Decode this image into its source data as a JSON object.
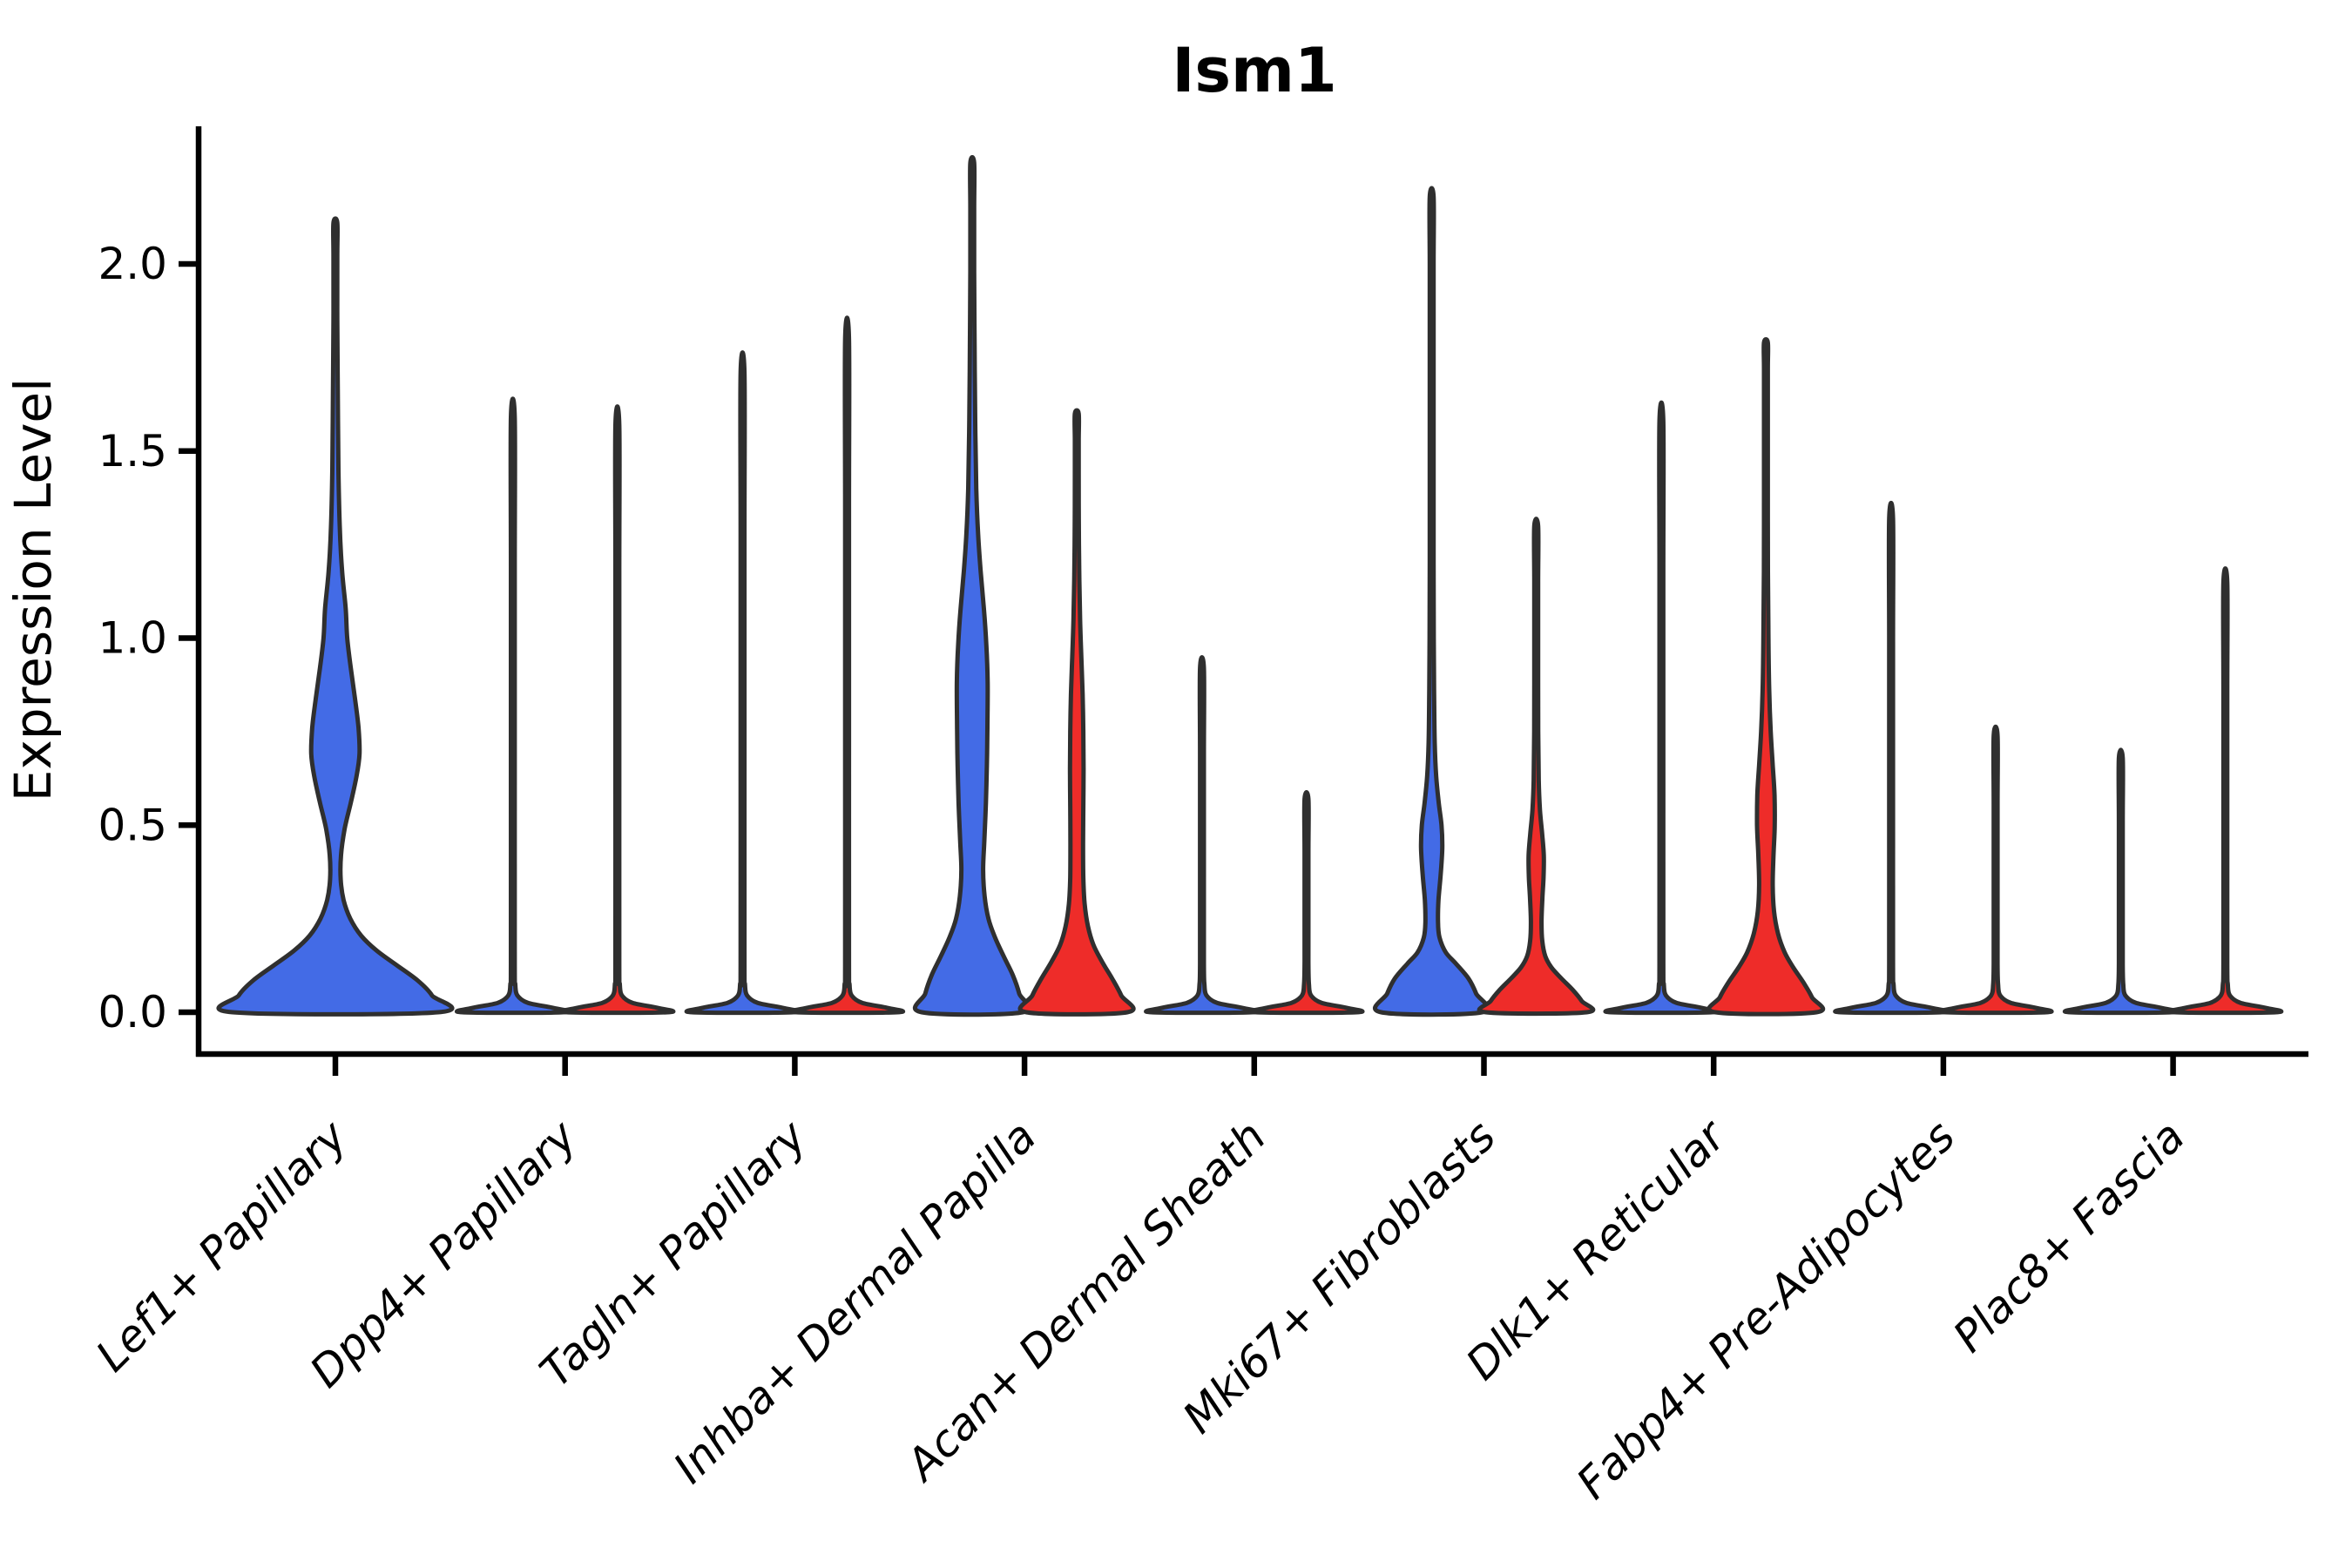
{
  "chart_data": {
    "type": "violin",
    "title": "Ism1",
    "ylabel": "Expression Level",
    "xlabel": "",
    "legend_position": "none",
    "grid": false,
    "ytick_labels": [
      "0.0",
      "0.5",
      "1.0",
      "1.5",
      "2.0"
    ],
    "ytick_values": [
      0.0,
      0.5,
      1.0,
      1.5,
      2.0
    ],
    "ylim": [
      -0.11,
      2.37
    ],
    "xtick_rotation_deg": 45,
    "series_colors": {
      "blue": "#436BE6",
      "red": "#EE2C29",
      "outline": "#2f2f2f"
    },
    "categories": [
      "Lef1+ Papillary",
      "Dpp4+ Papillary",
      "Tagln+ Papillary",
      "Inhba+ Dermal Papilla",
      "Acan+ Dermal Sheath",
      "Mki67+ Fibroblasts",
      "Dlk1+ Reticular",
      "Fabp4+ Pre-Adipocytes",
      "Plac8+ Fascia"
    ],
    "groups": [
      {
        "label": "Lef1+ Papillary",
        "violins": [
          {
            "split": "blue",
            "align": "center",
            "width": "double",
            "max_expression": 2.11,
            "shape": "lef1_blue"
          }
        ]
      },
      {
        "label": "Dpp4+ Papillary",
        "violins": [
          {
            "split": "blue",
            "align": "left",
            "width": "single",
            "max_expression": 1.59,
            "shape": "line"
          },
          {
            "split": "red",
            "align": "right",
            "width": "single",
            "max_expression": 1.57,
            "shape": "line"
          }
        ]
      },
      {
        "label": "Tagln+ Papillary",
        "violins": [
          {
            "split": "blue",
            "align": "left",
            "width": "single",
            "max_expression": 1.71,
            "shape": "line"
          },
          {
            "split": "red",
            "align": "right",
            "width": "single",
            "max_expression": 1.8,
            "shape": "line"
          }
        ]
      },
      {
        "label": "Inhba+ Dermal Papilla",
        "violins": [
          {
            "split": "blue",
            "align": "left",
            "width": "single",
            "max_expression": 2.27,
            "shape": "inhba_blue"
          },
          {
            "split": "red",
            "align": "right",
            "width": "single",
            "max_expression": 1.6,
            "shape": "inhba_red"
          }
        ]
      },
      {
        "label": "Acan+ Dermal Sheath",
        "violins": [
          {
            "split": "blue",
            "align": "left",
            "width": "single",
            "max_expression": 0.92,
            "shape": "line"
          },
          {
            "split": "red",
            "align": "right",
            "width": "single",
            "max_expression": 0.57,
            "shape": "line"
          }
        ]
      },
      {
        "label": "Mki67+ Fibroblasts",
        "violins": [
          {
            "split": "blue",
            "align": "left",
            "width": "single",
            "max_expression": 2.18,
            "shape": "mki67_blue"
          },
          {
            "split": "red",
            "align": "right",
            "width": "single",
            "max_expression": 1.3,
            "shape": "mki67_red"
          }
        ]
      },
      {
        "label": "Dlk1+ Reticular",
        "violins": [
          {
            "split": "blue",
            "align": "left",
            "width": "single",
            "max_expression": 1.58,
            "shape": "line"
          },
          {
            "split": "red",
            "align": "right",
            "width": "single",
            "max_expression": 1.79,
            "shape": "dlk1_red"
          }
        ]
      },
      {
        "label": "Fabp4+ Pre-Adipocytes",
        "violins": [
          {
            "split": "blue",
            "align": "left",
            "width": "single",
            "max_expression": 1.32,
            "shape": "line"
          },
          {
            "split": "red",
            "align": "right",
            "width": "single",
            "max_expression": 0.74,
            "shape": "line"
          }
        ]
      },
      {
        "label": "Plac8+ Fascia",
        "violins": [
          {
            "split": "blue",
            "align": "left",
            "width": "single",
            "max_expression": 0.68,
            "shape": "line"
          },
          {
            "split": "red",
            "align": "right",
            "width": "single",
            "max_expression": 1.15,
            "shape": "line"
          }
        ]
      }
    ],
    "profiles": {
      "lef1_blue": [
        [
          0,
          1
        ],
        [
          0.045,
          0.94
        ],
        [
          0.085,
          0.8
        ],
        [
          0.125,
          0.6
        ],
        [
          0.165,
          0.4
        ],
        [
          0.205,
          0.25
        ],
        [
          0.25,
          0.145
        ],
        [
          0.3,
          0.08
        ],
        [
          0.355,
          0.052
        ],
        [
          0.42,
          0.055
        ],
        [
          0.49,
          0.09
        ],
        [
          0.56,
          0.15
        ],
        [
          0.63,
          0.205
        ],
        [
          0.69,
          0.235
        ],
        [
          0.76,
          0.225
        ],
        [
          0.84,
          0.19
        ],
        [
          0.92,
          0.15
        ],
        [
          1.0,
          0.115
        ],
        [
          1.08,
          0.1
        ],
        [
          1.18,
          0.065
        ],
        [
          1.3,
          0.042
        ],
        [
          1.45,
          0.03
        ],
        [
          1.65,
          0.024
        ],
        [
          1.85,
          0.019
        ],
        [
          2.02,
          0.016
        ],
        [
          2.11,
          0.013
        ]
      ],
      "inhba_blue": [
        [
          0,
          1
        ],
        [
          0.05,
          0.93
        ],
        [
          0.1,
          0.8
        ],
        [
          0.15,
          0.62
        ],
        [
          0.2,
          0.45
        ],
        [
          0.25,
          0.32
        ],
        [
          0.31,
          0.245
        ],
        [
          0.38,
          0.215
        ],
        [
          0.46,
          0.24
        ],
        [
          0.56,
          0.27
        ],
        [
          0.66,
          0.29
        ],
        [
          0.76,
          0.3
        ],
        [
          0.88,
          0.305
        ],
        [
          0.98,
          0.28
        ],
        [
          1.08,
          0.23
        ],
        [
          1.18,
          0.165
        ],
        [
          1.28,
          0.115
        ],
        [
          1.4,
          0.08
        ],
        [
          1.58,
          0.058
        ],
        [
          1.78,
          0.046
        ],
        [
          1.98,
          0.038
        ],
        [
          2.15,
          0.032
        ],
        [
          2.27,
          0.028
        ]
      ],
      "inhba_red": [
        [
          0,
          1
        ],
        [
          0.045,
          0.88
        ],
        [
          0.09,
          0.7
        ],
        [
          0.135,
          0.5
        ],
        [
          0.18,
          0.33
        ],
        [
          0.23,
          0.22
        ],
        [
          0.29,
          0.155
        ],
        [
          0.36,
          0.13
        ],
        [
          0.45,
          0.125
        ],
        [
          0.55,
          0.13
        ],
        [
          0.65,
          0.135
        ],
        [
          0.75,
          0.13
        ],
        [
          0.85,
          0.115
        ],
        [
          0.95,
          0.09
        ],
        [
          1.05,
          0.065
        ],
        [
          1.18,
          0.048
        ],
        [
          1.32,
          0.04
        ],
        [
          1.45,
          0.034
        ],
        [
          1.53,
          0.031
        ],
        [
          1.6,
          0.028
        ]
      ],
      "mki67_blue": [
        [
          0,
          1
        ],
        [
          0.05,
          0.88
        ],
        [
          0.09,
          0.73
        ],
        [
          0.13,
          0.48
        ],
        [
          0.16,
          0.28
        ],
        [
          0.2,
          0.155
        ],
        [
          0.24,
          0.125
        ],
        [
          0.3,
          0.135
        ],
        [
          0.37,
          0.18
        ],
        [
          0.44,
          0.21
        ],
        [
          0.5,
          0.195
        ],
        [
          0.56,
          0.14
        ],
        [
          0.63,
          0.09
        ],
        [
          0.72,
          0.06
        ],
        [
          0.85,
          0.048
        ],
        [
          1.0,
          0.042
        ],
        [
          1.2,
          0.037
        ],
        [
          1.45,
          0.032
        ],
        [
          1.75,
          0.028
        ],
        [
          2.0,
          0.026
        ],
        [
          2.18,
          0.024
        ]
      ],
      "mki67_red": [
        [
          0,
          1
        ],
        [
          0.03,
          0.9
        ],
        [
          0.06,
          0.72
        ],
        [
          0.09,
          0.5
        ],
        [
          0.12,
          0.3
        ],
        [
          0.15,
          0.18
        ],
        [
          0.19,
          0.12
        ],
        [
          0.24,
          0.105
        ],
        [
          0.3,
          0.12
        ],
        [
          0.36,
          0.145
        ],
        [
          0.42,
          0.15
        ],
        [
          0.48,
          0.115
        ],
        [
          0.54,
          0.075
        ],
        [
          0.62,
          0.05
        ],
        [
          0.75,
          0.04
        ],
        [
          0.95,
          0.034
        ],
        [
          1.15,
          0.03
        ],
        [
          1.3,
          0.027
        ]
      ],
      "dlk1_red": [
        [
          0,
          1
        ],
        [
          0.04,
          0.91
        ],
        [
          0.08,
          0.74
        ],
        [
          0.12,
          0.54
        ],
        [
          0.16,
          0.37
        ],
        [
          0.21,
          0.24
        ],
        [
          0.27,
          0.16
        ],
        [
          0.34,
          0.135
        ],
        [
          0.42,
          0.15
        ],
        [
          0.5,
          0.175
        ],
        [
          0.58,
          0.17
        ],
        [
          0.66,
          0.135
        ],
        [
          0.75,
          0.095
        ],
        [
          0.86,
          0.065
        ],
        [
          1.0,
          0.05
        ],
        [
          1.18,
          0.04
        ],
        [
          1.38,
          0.034
        ],
        [
          1.58,
          0.03
        ],
        [
          1.72,
          0.027
        ],
        [
          1.79,
          0.025
        ]
      ]
    }
  }
}
